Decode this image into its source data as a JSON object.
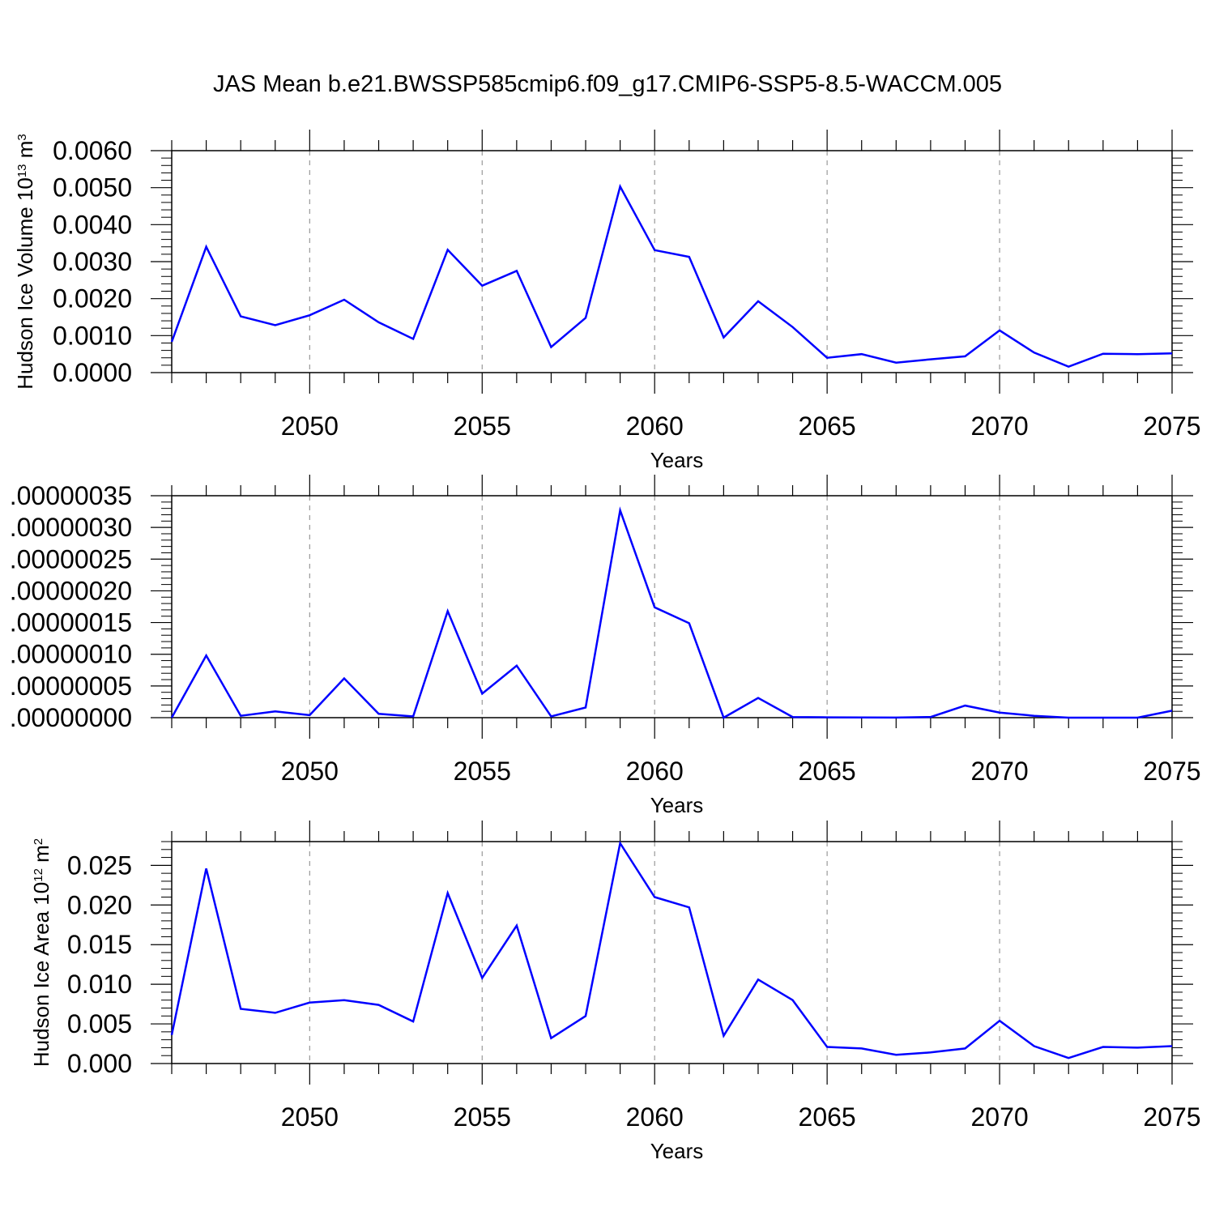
{
  "title": "JAS Mean b.e21.BWSSP585cmip6.f09_g17.CMIP6-SSP5-8.5-WACCM.005",
  "colors": {
    "line": "#0000ff",
    "axis": "#000000",
    "grid": "#999999"
  },
  "chart_data": [
    {
      "type": "line",
      "xlabel": "Years",
      "ylabel": {
        "prefix": "Hudson Ice Volume 10",
        "exp1": "13",
        "mid": " m",
        "exp2": "3"
      },
      "xlim": [
        2046,
        2075
      ],
      "ylim": [
        0,
        0.006
      ],
      "x_ticks": [
        2050,
        2055,
        2060,
        2065,
        2070,
        2075
      ],
      "x_tick_labels": [
        "2050",
        "2055",
        "2060",
        "2065",
        "2070",
        "2075"
      ],
      "y_ticks": [
        0,
        0.001,
        0.002,
        0.003,
        0.004,
        0.005,
        0.006
      ],
      "y_tick_labels": [
        "0.0000",
        "0.0010",
        "0.0020",
        "0.0030",
        "0.0040",
        "0.0050",
        "0.0060"
      ],
      "grid": "vertical dashed at major x ticks",
      "x": [
        2046,
        2047,
        2048,
        2049,
        2050,
        2051,
        2052,
        2053,
        2054,
        2055,
        2056,
        2057,
        2058,
        2059,
        2060,
        2061,
        2062,
        2063,
        2064,
        2065,
        2066,
        2067,
        2068,
        2069,
        2070,
        2071,
        2072,
        2073,
        2074,
        2075
      ],
      "values": [
        0.00083,
        0.0034,
        0.00152,
        0.00128,
        0.00155,
        0.00197,
        0.00136,
        0.00091,
        0.00332,
        0.00235,
        0.00275,
        0.00069,
        0.00148,
        0.00503,
        0.00331,
        0.00313,
        0.00095,
        0.00193,
        0.00123,
        0.0004,
        0.0005,
        0.00027,
        0.00036,
        0.00044,
        0.00114,
        0.00054,
        0.00016,
        0.00051,
        0.0005,
        0.00052
      ]
    },
    {
      "type": "line",
      "xlabel": "Years",
      "ylabel": "",
      "xlim": [
        2046,
        2075
      ],
      "ylim": [
        0,
        3.5e-07
      ],
      "x_ticks": [
        2050,
        2055,
        2060,
        2065,
        2070,
        2075
      ],
      "x_tick_labels": [
        "2050",
        "2055",
        "2060",
        "2065",
        "2070",
        "2075"
      ],
      "y_ticks": [
        0,
        5e-08,
        1e-07,
        1.5e-07,
        2e-07,
        2.5e-07,
        3e-07,
        3.5e-07
      ],
      "y_tick_labels": [
        ".00000000",
        ".00000005",
        ".00000010",
        ".00000015",
        ".00000020",
        ".00000025",
        ".00000030",
        ".00000035"
      ],
      "grid": "vertical dashed at major x ticks",
      "x": [
        2046,
        2047,
        2048,
        2049,
        2050,
        2051,
        2052,
        2053,
        2054,
        2055,
        2056,
        2057,
        2058,
        2059,
        2060,
        2061,
        2062,
        2063,
        2064,
        2065,
        2066,
        2067,
        2068,
        2069,
        2070,
        2071,
        2072,
        2073,
        2074,
        2075
      ],
      "values": [
        0.0,
        9.8e-08,
        3e-09,
        1e-08,
        4e-09,
        6.2e-08,
        6e-09,
        2e-09,
        1.68e-07,
        3.8e-08,
        8.2e-08,
        2e-09,
        1.6e-08,
        3.27e-07,
        1.74e-07,
        1.49e-07,
        0.0,
        3.1e-08,
        1e-09,
        5e-10,
        2e-10,
        1e-10,
        1e-09,
        1.9e-08,
        8e-09,
        3e-09,
        0.0,
        0.0,
        0.0,
        1.1e-08
      ]
    },
    {
      "type": "line",
      "xlabel": "Years",
      "ylabel": {
        "prefix": "Hudson Ice Area 10",
        "exp1": "12",
        "mid": " m",
        "exp2": "2"
      },
      "xlim": [
        2046,
        2075
      ],
      "ylim": [
        0,
        0.028
      ],
      "x_ticks": [
        2050,
        2055,
        2060,
        2065,
        2070,
        2075
      ],
      "x_tick_labels": [
        "2050",
        "2055",
        "2060",
        "2065",
        "2070",
        "2075"
      ],
      "y_ticks": [
        0,
        0.005,
        0.01,
        0.015,
        0.02,
        0.025
      ],
      "y_tick_labels": [
        "0.000",
        "0.005",
        "0.010",
        "0.015",
        "0.020",
        "0.025"
      ],
      "grid": "vertical dashed at major x ticks",
      "x": [
        2046,
        2047,
        2048,
        2049,
        2050,
        2051,
        2052,
        2053,
        2054,
        2055,
        2056,
        2057,
        2058,
        2059,
        2060,
        2061,
        2062,
        2063,
        2064,
        2065,
        2066,
        2067,
        2068,
        2069,
        2070,
        2071,
        2072,
        2073,
        2074,
        2075
      ],
      "values": [
        0.0036,
        0.0246,
        0.0069,
        0.0064,
        0.0077,
        0.008,
        0.0074,
        0.0053,
        0.0215,
        0.0108,
        0.0174,
        0.0032,
        0.006,
        0.0278,
        0.021,
        0.0197,
        0.0035,
        0.0106,
        0.008,
        0.0021,
        0.0019,
        0.0011,
        0.0014,
        0.0019,
        0.0054,
        0.0022,
        0.0007,
        0.0021,
        0.002,
        0.0022
      ]
    }
  ]
}
